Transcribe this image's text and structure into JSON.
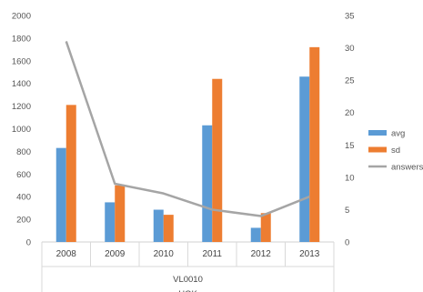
{
  "chart_data": {
    "type": "bar",
    "categories": [
      "2008",
      "2009",
      "2010",
      "2011",
      "2012",
      "2013"
    ],
    "group_labels": [
      "VL0010",
      "HOK"
    ],
    "y_left": {
      "ylim": [
        0,
        2000
      ],
      "ticks": [
        0,
        200,
        400,
        600,
        800,
        1000,
        1200,
        1400,
        1600,
        1800,
        2000
      ]
    },
    "y_right": {
      "ylim": [
        0,
        35
      ],
      "ticks": [
        0,
        5,
        10,
        15,
        20,
        25,
        30,
        35
      ]
    },
    "series": [
      {
        "name": "avg",
        "type": "bar",
        "axis": "left",
        "color": "#5b9bd5",
        "values": [
          830,
          350,
          285,
          1030,
          125,
          1460
        ]
      },
      {
        "name": "sd",
        "type": "bar",
        "axis": "left",
        "color": "#ed7d31",
        "values": [
          1210,
          500,
          240,
          1440,
          255,
          1720
        ]
      },
      {
        "name": "answers",
        "type": "line",
        "axis": "right",
        "color": "#a5a5a5",
        "values": [
          31,
          9,
          7.5,
          5,
          4,
          7
        ]
      }
    ],
    "legend_position": "right",
    "grid": false
  }
}
